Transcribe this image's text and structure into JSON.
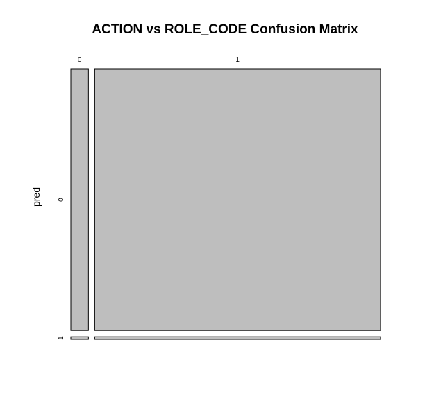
{
  "chart_data": {
    "type": "mosaic",
    "title": "ACTION vs ROLE_CODE Confusion Matrix",
    "ylabel": "pred",
    "column_categories": [
      "0",
      "1"
    ],
    "row_categories": [
      "0",
      "1"
    ],
    "column_proportions": [
      0.058,
      0.942
    ],
    "cells": [
      {
        "col": "0",
        "row": "0",
        "share_of_column": 0.99
      },
      {
        "col": "0",
        "row": "1",
        "share_of_column": 0.01
      },
      {
        "col": "1",
        "row": "0",
        "share_of_column": 0.99
      },
      {
        "col": "1",
        "row": "1",
        "share_of_column": 0.01
      }
    ],
    "fill_color": "#bebebe",
    "stroke_color": "#000000"
  }
}
